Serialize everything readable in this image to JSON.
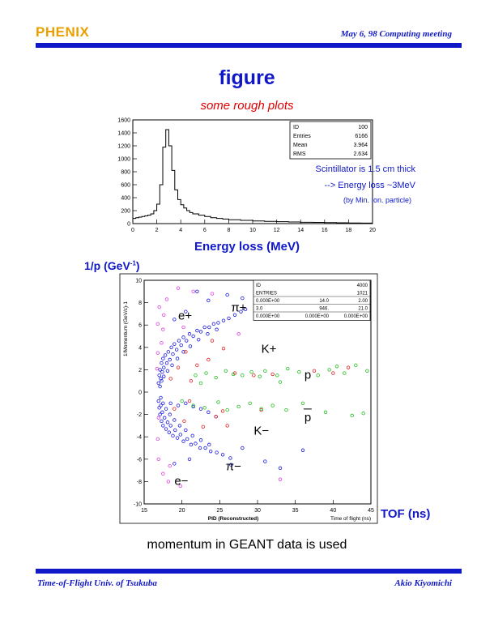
{
  "header": {
    "logo_text": "PHENIX",
    "meeting": "May 6, 98   Computing meeting"
  },
  "title": "figure",
  "subtitle": "some rough plots",
  "colors": {
    "accent": "#1018c8",
    "subtitle": "#e00000",
    "logo": "#e8a000"
  },
  "chart_data": [
    {
      "type": "histogram",
      "xlabel": "Energy loss (MeV)",
      "ylabel": "",
      "xlim": [
        0,
        20
      ],
      "ylim": [
        0,
        1600
      ],
      "x_ticks": [
        "0",
        "2",
        "4",
        "6",
        "8",
        "10",
        "12",
        "14",
        "16",
        "18",
        "20"
      ],
      "y_ticks": [
        "0",
        "200",
        "400",
        "600",
        "800",
        "1000",
        "1200",
        "1400",
        "1600"
      ],
      "bin_width": 0.25,
      "bins_x": [
        0.0,
        0.25,
        0.5,
        0.75,
        1.0,
        1.25,
        1.5,
        1.75,
        2.0,
        2.25,
        2.5,
        2.75,
        3.0,
        3.25,
        3.5,
        3.75,
        4.0,
        4.25,
        4.5,
        4.75,
        5.0,
        5.5,
        6.0,
        6.5,
        7.0,
        7.5,
        8.0,
        9.0,
        10.0,
        11.0,
        12.0,
        13.0,
        14.0,
        15.0,
        16.0,
        17.0,
        18.0,
        19.0
      ],
      "values": [
        80,
        90,
        100,
        110,
        120,
        130,
        150,
        200,
        300,
        600,
        1180,
        1450,
        1200,
        820,
        520,
        370,
        290,
        240,
        200,
        170,
        150,
        130,
        110,
        90,
        80,
        70,
        60,
        50,
        40,
        35,
        30,
        25,
        20,
        18,
        15,
        12,
        10,
        8
      ],
      "stats": [
        {
          "label": "ID",
          "value": "100"
        },
        {
          "label": "Entries",
          "value": "6166"
        },
        {
          "label": "Mean",
          "value": "3.964"
        },
        {
          "label": "RMS",
          "value": "2.634"
        }
      ],
      "annotations": [
        "Scintillator is 1.5 cm thick",
        "--> Energy loss ~3MeV",
        "(by Min. Ion. particle)"
      ]
    },
    {
      "type": "scatter",
      "xlabel": "TOF (ns)",
      "ylabel": "1/p (GeV-1)",
      "inner_xlabel": "PID (Reconstructed)",
      "inner_xlabel_right": "Time of flight (ns)",
      "inner_ylabel": "1/Momentum (GeV/c)-1",
      "xlim": [
        15,
        45
      ],
      "ylim": [
        -10,
        10
      ],
      "x_ticks": [
        "15",
        "20",
        "25",
        "30",
        "35",
        "40",
        "45"
      ],
      "y_ticks": [
        "-10",
        "-8",
        "-6",
        "-4",
        "-2",
        "0",
        "2",
        "4",
        "6",
        "8",
        "10"
      ],
      "stats": [
        [
          "ID",
          "",
          "4000"
        ],
        [
          "ENTRIES",
          "",
          "1021"
        ],
        [
          "0.000E+00",
          "14.0",
          "2.00"
        ],
        [
          "3.0",
          "946.",
          "21.0"
        ],
        [
          "0.000E+00",
          "0.000E+00",
          "0.000E+00"
        ]
      ],
      "series": [
        {
          "name": "pi",
          "color": "#1a1ae0",
          "points": [
            [
              16.9,
              0.8
            ],
            [
              17.0,
              1.5
            ],
            [
              17.1,
              2.0
            ],
            [
              17.2,
              1.2
            ],
            [
              17.3,
              2.6
            ],
            [
              17.4,
              1.8
            ],
            [
              17.5,
              3.0
            ],
            [
              17.6,
              2.2
            ],
            [
              17.8,
              3.3
            ],
            [
              18.0,
              2.6
            ],
            [
              18.2,
              3.6
            ],
            [
              18.4,
              2.9
            ],
            [
              18.6,
              4.0
            ],
            [
              18.8,
              3.4
            ],
            [
              19.0,
              4.3
            ],
            [
              19.3,
              3.8
            ],
            [
              19.6,
              4.6
            ],
            [
              19.9,
              4.2
            ],
            [
              20.2,
              4.9
            ],
            [
              20.6,
              4.6
            ],
            [
              21.0,
              5.2
            ],
            [
              21.5,
              5.0
            ],
            [
              22.0,
              5.5
            ],
            [
              22.5,
              5.4
            ],
            [
              23.0,
              5.8
            ],
            [
              23.6,
              5.8
            ],
            [
              24.2,
              6.1
            ],
            [
              24.8,
              6.2
            ],
            [
              25.5,
              6.4
            ],
            [
              26.2,
              6.6
            ],
            [
              27.0,
              6.9
            ],
            [
              27.8,
              7.2
            ],
            [
              28.4,
              7.4
            ],
            [
              17.1,
              0.5
            ],
            [
              17.3,
              1.0
            ],
            [
              17.6,
              1.4
            ],
            [
              18.1,
              1.9
            ],
            [
              18.7,
              2.4
            ],
            [
              19.4,
              3.0
            ],
            [
              20.2,
              3.6
            ],
            [
              21.1,
              4.1
            ],
            [
              22.2,
              4.7
            ],
            [
              23.4,
              5.2
            ],
            [
              24.6,
              5.6
            ],
            [
              16.9,
              -0.8
            ],
            [
              17.0,
              -1.4
            ],
            [
              17.1,
              -2.0
            ],
            [
              17.2,
              -1.2
            ],
            [
              17.3,
              -2.6
            ],
            [
              17.4,
              -1.8
            ],
            [
              17.5,
              -3.0
            ],
            [
              17.7,
              -2.3
            ],
            [
              17.9,
              -3.3
            ],
            [
              18.1,
              -2.7
            ],
            [
              18.3,
              -3.6
            ],
            [
              18.5,
              -3.0
            ],
            [
              18.8,
              -3.9
            ],
            [
              19.1,
              -3.4
            ],
            [
              19.4,
              -4.1
            ],
            [
              19.8,
              -3.8
            ],
            [
              20.2,
              -4.4
            ],
            [
              20.7,
              -4.2
            ],
            [
              21.2,
              -4.7
            ],
            [
              21.8,
              -4.6
            ],
            [
              22.4,
              -5.0
            ],
            [
              23.1,
              -5.0
            ],
            [
              23.8,
              -5.3
            ],
            [
              24.6,
              -5.4
            ],
            [
              25.4,
              -5.6
            ],
            [
              26.4,
              -5.9
            ],
            [
              17.2,
              -0.5
            ],
            [
              17.5,
              -1.0
            ],
            [
              17.9,
              -1.5
            ],
            [
              18.4,
              -2.0
            ],
            [
              19.0,
              -2.5
            ],
            [
              19.7,
              -3.0
            ],
            [
              20.5,
              -3.4
            ],
            [
              21.4,
              -3.9
            ],
            [
              22.5,
              -4.3
            ],
            [
              23.6,
              -4.7
            ],
            [
              18.5,
              -1.0
            ],
            [
              19.5,
              -1.2
            ],
            [
              20.5,
              -1.0
            ],
            [
              21.5,
              -1.3
            ],
            [
              22.5,
              -1.5
            ],
            [
              23.5,
              -1.8
            ],
            [
              24.5,
              -2.2
            ],
            [
              19.0,
              -6.4
            ],
            [
              21.0,
              -6.0
            ],
            [
              26.5,
              -6.5
            ],
            [
              28.0,
              -5.0
            ],
            [
              31.0,
              -6.2
            ],
            [
              33.0,
              -6.8
            ],
            [
              36.0,
              -5.2
            ],
            [
              22.0,
              9.0
            ],
            [
              23.5,
              8.2
            ],
            [
              26.0,
              8.7
            ],
            [
              28.0,
              8.4
            ],
            [
              34.0,
              8.6
            ],
            [
              36.5,
              8.8
            ],
            [
              19.0,
              6.5
            ],
            [
              20.5,
              7.2
            ]
          ]
        },
        {
          "name": "e",
          "color": "#e040e0",
          "points": [
            [
              16.8,
              6.1
            ],
            [
              17.0,
              7.6
            ],
            [
              17.5,
              5.6
            ],
            [
              18.0,
              8.3
            ],
            [
              19.5,
              9.3
            ],
            [
              21.5,
              9.0
            ],
            [
              16.8,
              3.5
            ],
            [
              17.3,
              4.4
            ],
            [
              16.9,
              -6.0
            ],
            [
              17.5,
              -7.3
            ],
            [
              18.2,
              -8.0
            ],
            [
              16.8,
              -4.2
            ],
            [
              19.8,
              -8.4
            ],
            [
              18.4,
              -6.6
            ],
            [
              16.7,
              2.1
            ],
            [
              16.9,
              -2.3
            ],
            [
              17.6,
              6.9
            ],
            [
              20.2,
              5.8
            ],
            [
              24.0,
              8.8
            ],
            [
              27.5,
              5.2
            ],
            [
              33.0,
              -7.8
            ]
          ]
        },
        {
          "name": "K",
          "color": "#e02020",
          "points": [
            [
              18.5,
              1.2
            ],
            [
              19.5,
              2.2
            ],
            [
              20.5,
              3.6
            ],
            [
              21.2,
              1.0
            ],
            [
              22.0,
              2.4
            ],
            [
              23.5,
              2.9
            ],
            [
              19.0,
              -1.5
            ],
            [
              20.3,
              -2.6
            ],
            [
              21.0,
              -0.8
            ],
            [
              22.8,
              -3.1
            ],
            [
              24.5,
              -2.2
            ],
            [
              25.4,
              -1.7
            ],
            [
              27.0,
              1.7
            ],
            [
              29.5,
              1.5
            ],
            [
              32.0,
              1.6
            ],
            [
              37.5,
              1.9
            ],
            [
              40.0,
              1.7
            ],
            [
              42.0,
              2.2
            ],
            [
              26.0,
              -3.0
            ],
            [
              30.5,
              -1.6
            ],
            [
              24.0,
              4.6
            ],
            [
              25.5,
              3.9
            ]
          ]
        },
        {
          "name": "p",
          "color": "#20c020",
          "points": [
            [
              21.8,
              1.5
            ],
            [
              23.2,
              1.7
            ],
            [
              24.5,
              1.3
            ],
            [
              25.8,
              1.9
            ],
            [
              26.8,
              1.6
            ],
            [
              28.0,
              1.5
            ],
            [
              29.2,
              1.8
            ],
            [
              30.3,
              1.4
            ],
            [
              31.0,
              1.9
            ],
            [
              32.6,
              1.5
            ],
            [
              34.0,
              2.1
            ],
            [
              35.5,
              1.8
            ],
            [
              38.0,
              1.5
            ],
            [
              39.5,
              2.0
            ],
            [
              40.5,
              2.3
            ],
            [
              41.5,
              1.7
            ],
            [
              43.0,
              2.4
            ],
            [
              44.5,
              1.9
            ],
            [
              20.0,
              -0.8
            ],
            [
              21.5,
              -1.2
            ],
            [
              23.0,
              -1.4
            ],
            [
              24.8,
              -0.9
            ],
            [
              26.0,
              -1.6
            ],
            [
              27.5,
              -1.3
            ],
            [
              29.0,
              -1.0
            ],
            [
              30.5,
              -1.5
            ],
            [
              32.0,
              -1.2
            ],
            [
              33.8,
              -1.6
            ],
            [
              36.0,
              -1.0
            ],
            [
              39.0,
              -1.8
            ],
            [
              42.5,
              -2.1
            ],
            [
              44.0,
              -1.9
            ],
            [
              22.5,
              0.8
            ],
            [
              33.0,
              0.9
            ]
          ]
        }
      ],
      "particle_labels": [
        "e+",
        "π+",
        "K+",
        "p",
        "p",
        "K−",
        "π−",
        "e−"
      ]
    }
  ],
  "caption": "momentum in GEANT data is used",
  "footer": {
    "left": "Time-of-Flight  Univ. of Tsukuba",
    "right": "Akio Kiyomichi"
  }
}
